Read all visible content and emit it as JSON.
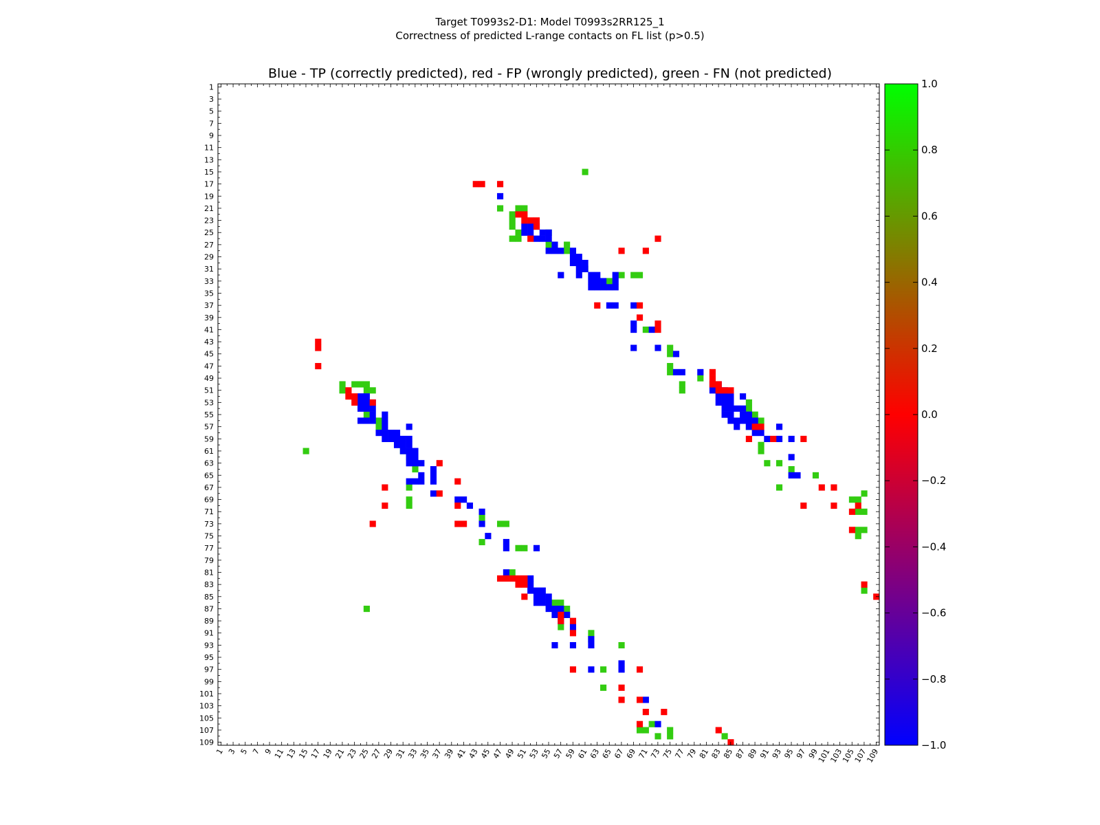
{
  "suptitle": {
    "line1": "Target T0993s2-D1: Model T0993s2RR125_1",
    "line2": "Correctness of predicted L-range contacts on FL list (p>0.5)"
  },
  "chart_data": {
    "type": "heatmap",
    "title": "Blue - TP (correctly predicted), red - FP (wrongly predicted), green - FN (not predicted)",
    "xlabel": "",
    "ylabel": "",
    "xlim": [
      1,
      109
    ],
    "ylim": [
      1,
      109
    ],
    "y_inverted": true,
    "grid": false,
    "tick_labels": [
      "1",
      "3",
      "5",
      "7",
      "9",
      "11",
      "13",
      "15",
      "17",
      "19",
      "21",
      "23",
      "25",
      "27",
      "29",
      "31",
      "33",
      "35",
      "37",
      "39",
      "41",
      "43",
      "45",
      "47",
      "49",
      "51",
      "53",
      "55",
      "57",
      "59",
      "61",
      "63",
      "65",
      "67",
      "69",
      "71",
      "73",
      "75",
      "77",
      "79",
      "81",
      "83",
      "85",
      "87",
      "89",
      "91",
      "93",
      "95",
      "97",
      "99",
      "101",
      "103",
      "105",
      "107",
      "109"
    ],
    "colorbar": {
      "min": -1.0,
      "max": 1.0,
      "tick_labels": [
        "1.0",
        "0.8",
        "0.6",
        "0.4",
        "0.2",
        "0.0",
        "−0.2",
        "−0.4",
        "−0.6",
        "−0.8",
        "−1.0"
      ],
      "colors": {
        "low": "#0000ff",
        "mid": "#ff0000",
        "high": "#00ff00"
      }
    },
    "category_colors": {
      "TP": "#0000ff",
      "FP": "#ff0000",
      "FN": "#33cc11"
    },
    "cells": {
      "TP": [
        [
          19,
          47
        ],
        [
          24,
          52
        ],
        [
          25,
          51
        ],
        [
          24,
          51
        ],
        [
          24,
          53
        ],
        [
          25,
          52
        ],
        [
          25,
          54
        ],
        [
          25,
          55
        ],
        [
          26,
          53
        ],
        [
          26,
          54
        ],
        [
          26,
          55
        ],
        [
          27,
          56
        ],
        [
          28,
          55
        ],
        [
          28,
          56
        ],
        [
          28,
          57
        ],
        [
          28,
          59
        ],
        [
          29,
          59
        ],
        [
          29,
          60
        ],
        [
          30,
          59
        ],
        [
          30,
          60
        ],
        [
          30,
          61
        ],
        [
          31,
          60
        ],
        [
          31,
          61
        ],
        [
          32,
          57
        ],
        [
          32,
          60
        ],
        [
          32,
          62
        ],
        [
          32,
          63
        ],
        [
          32,
          66
        ],
        [
          33,
          62
        ],
        [
          33,
          63
        ],
        [
          33,
          64
        ],
        [
          33,
          66
        ],
        [
          34,
          62
        ],
        [
          34,
          63
        ],
        [
          34,
          64
        ],
        [
          34,
          65
        ],
        [
          34,
          66
        ],
        [
          37,
          65
        ],
        [
          37,
          66
        ],
        [
          37,
          69
        ],
        [
          40,
          69
        ],
        [
          41,
          69
        ],
        [
          41,
          72
        ],
        [
          44,
          69
        ],
        [
          44,
          73
        ],
        [
          45,
          76
        ],
        [
          48,
          76
        ],
        [
          48,
          77
        ],
        [
          48,
          80
        ],
        [
          50,
          82
        ],
        [
          50,
          83
        ],
        [
          51,
          82
        ],
        [
          51,
          83
        ],
        [
          51,
          84
        ],
        [
          52,
          83
        ],
        [
          52,
          84
        ],
        [
          52,
          85
        ],
        [
          52,
          87
        ],
        [
          53,
          83
        ],
        [
          53,
          84
        ],
        [
          53,
          85
        ],
        [
          54,
          84
        ],
        [
          54,
          85
        ],
        [
          54,
          86
        ],
        [
          54,
          87
        ],
        [
          55,
          84
        ],
        [
          55,
          85
        ],
        [
          55,
          87
        ],
        [
          55,
          88
        ],
        [
          56,
          85
        ],
        [
          56,
          86
        ],
        [
          56,
          87
        ],
        [
          56,
          88
        ],
        [
          56,
          89
        ],
        [
          57,
          86
        ],
        [
          57,
          88
        ],
        [
          57,
          89
        ],
        [
          57,
          93
        ],
        [
          58,
          89
        ],
        [
          58,
          90
        ],
        [
          59,
          91
        ],
        [
          59,
          93
        ],
        [
          59,
          95
        ],
        [
          62,
          95
        ],
        [
          65,
          95
        ],
        [
          65,
          96
        ],
        [
          52,
          24
        ],
        [
          52,
          25
        ],
        [
          53,
          24
        ],
        [
          53,
          25
        ],
        [
          53,
          26
        ],
        [
          54,
          24
        ],
        [
          54,
          25
        ],
        [
          54,
          26
        ],
        [
          55,
          26
        ],
        [
          56,
          24
        ],
        [
          56,
          25
        ],
        [
          56,
          26
        ],
        [
          55,
          28
        ],
        [
          56,
          28
        ],
        [
          57,
          28
        ],
        [
          57,
          32
        ],
        [
          58,
          27
        ],
        [
          58,
          28
        ],
        [
          58,
          29
        ],
        [
          58,
          30
        ],
        [
          59,
          28
        ],
        [
          59,
          29
        ],
        [
          59,
          30
        ],
        [
          59,
          31
        ],
        [
          59,
          32
        ],
        [
          60,
          30
        ],
        [
          60,
          31
        ],
        [
          60,
          32
        ],
        [
          61,
          31
        ],
        [
          61,
          32
        ],
        [
          61,
          33
        ],
        [
          62,
          32
        ],
        [
          62,
          33
        ],
        [
          63,
          32
        ],
        [
          63,
          33
        ],
        [
          63,
          34
        ],
        [
          64,
          36
        ],
        [
          65,
          34
        ],
        [
          65,
          36
        ],
        [
          66,
          32
        ],
        [
          66,
          33
        ],
        [
          66,
          34
        ],
        [
          66,
          36
        ],
        [
          68,
          36
        ],
        [
          69,
          40
        ],
        [
          69,
          41
        ],
        [
          70,
          42
        ],
        [
          71,
          44
        ],
        [
          73,
          44
        ],
        [
          75,
          45
        ],
        [
          77,
          48
        ],
        [
          76,
          48
        ],
        [
          77,
          53
        ],
        [
          81,
          48
        ],
        [
          82,
          52
        ],
        [
          83,
          52
        ],
        [
          84,
          52
        ],
        [
          84,
          53
        ],
        [
          84,
          54
        ],
        [
          85,
          53
        ],
        [
          85,
          54
        ],
        [
          85,
          55
        ],
        [
          86,
          53
        ],
        [
          86,
          54
        ],
        [
          86,
          55
        ],
        [
          87,
          55
        ],
        [
          87,
          56
        ],
        [
          87,
          57
        ],
        [
          88,
          56
        ],
        [
          88,
          57
        ],
        [
          88,
          58
        ],
        [
          89,
          57
        ],
        [
          90,
          59
        ],
        [
          92,
          62
        ],
        [
          93,
          56
        ],
        [
          93,
          59
        ],
        [
          93,
          62
        ],
        [
          96,
          67
        ],
        [
          97,
          67
        ],
        [
          97,
          62
        ],
        [
          102,
          71
        ],
        [
          106,
          73
        ]
      ],
      "FP": [
        [
          17,
          43
        ],
        [
          17,
          44
        ],
        [
          17,
          47
        ],
        [
          22,
          50
        ],
        [
          22,
          51
        ],
        [
          23,
          51
        ],
        [
          23,
          52
        ],
        [
          23,
          53
        ],
        [
          24,
          53
        ],
        [
          26,
          52
        ],
        [
          26,
          73
        ],
        [
          28,
          67
        ],
        [
          28,
          71
        ],
        [
          37,
          63
        ],
        [
          37,
          70
        ],
        [
          39,
          70
        ],
        [
          40,
          73
        ],
        [
          41,
          73
        ],
        [
          43,
          17
        ],
        [
          44,
          17
        ],
        [
          47,
          17
        ],
        [
          48,
          82
        ],
        [
          49,
          82
        ],
        [
          50,
          82
        ],
        [
          50,
          83
        ],
        [
          51,
          83
        ],
        [
          51,
          84
        ],
        [
          51,
          22
        ],
        [
          51,
          85
        ],
        [
          52,
          22
        ],
        [
          52,
          23
        ],
        [
          53,
          23
        ],
        [
          53,
          26
        ],
        [
          57,
          89
        ],
        [
          57,
          90
        ],
        [
          59,
          88
        ],
        [
          59,
          92
        ],
        [
          59,
          97
        ],
        [
          63,
          37
        ],
        [
          66,
          40
        ],
        [
          67,
          28
        ],
        [
          67,
          100
        ],
        [
          67,
          102
        ],
        [
          68,
          37
        ],
        [
          70,
          28
        ],
        [
          70,
          40
        ],
        [
          70,
          97
        ],
        [
          70,
          102
        ],
        [
          70,
          106
        ],
        [
          71,
          105
        ],
        [
          73,
          26
        ],
        [
          73,
          40
        ],
        [
          73,
          41
        ],
        [
          74,
          105
        ],
        [
          82,
          47
        ],
        [
          82,
          48
        ],
        [
          82,
          49
        ],
        [
          82,
          50
        ],
        [
          82,
          51
        ],
        [
          83,
          50
        ],
        [
          83,
          51
        ],
        [
          83,
          107
        ],
        [
          85,
          51
        ],
        [
          85,
          109
        ],
        [
          88,
          57
        ],
        [
          89,
          57
        ],
        [
          89,
          59
        ],
        [
          91,
          59
        ],
        [
          97,
          59
        ],
        [
          97,
          70
        ],
        [
          100,
          67
        ],
        [
          102,
          67
        ],
        [
          102,
          70
        ],
        [
          104,
          71
        ],
        [
          104,
          74
        ],
        [
          106,
          70
        ],
        [
          107,
          83
        ],
        [
          109,
          85
        ]
      ],
      "FN": [
        [
          15,
          61
        ],
        [
          21,
          47
        ],
        [
          21,
          50
        ],
        [
          21,
          51
        ],
        [
          22,
          49
        ],
        [
          23,
          49
        ],
        [
          24,
          49
        ],
        [
          25,
          50
        ],
        [
          25,
          55
        ],
        [
          26,
          49
        ],
        [
          26,
          50
        ],
        [
          27,
          55
        ],
        [
          27,
          58
        ],
        [
          28,
          58
        ],
        [
          31,
          61
        ],
        [
          32,
          67
        ],
        [
          32,
          69
        ],
        [
          32,
          70
        ],
        [
          33,
          65
        ],
        [
          41,
          71
        ],
        [
          44,
          75
        ],
        [
          45,
          75
        ],
        [
          47,
          75
        ],
        [
          48,
          75
        ],
        [
          49,
          80
        ],
        [
          50,
          77
        ],
        [
          51,
          77
        ],
        [
          53,
          88
        ],
        [
          54,
          88
        ],
        [
          55,
          89
        ],
        [
          56,
          90
        ],
        [
          57,
          88
        ],
        [
          60,
          90
        ],
        [
          61,
          90
        ],
        [
          63,
          91
        ],
        [
          63,
          93
        ],
        [
          64,
          95
        ],
        [
          65,
          99
        ],
        [
          67,
          93
        ],
        [
          68,
          107
        ],
        [
          69,
          105
        ],
        [
          69,
          106
        ],
        [
          71,
          106
        ],
        [
          71,
          107
        ],
        [
          74,
          106
        ],
        [
          74,
          107
        ],
        [
          75,
          106
        ],
        [
          50,
          21
        ],
        [
          51,
          21
        ],
        [
          50,
          23
        ],
        [
          50,
          24
        ],
        [
          50,
          25
        ],
        [
          51,
          25
        ],
        [
          51,
          26
        ],
        [
          55,
          25
        ],
        [
          56,
          27
        ],
        [
          57,
          27
        ],
        [
          61,
          15
        ],
        [
          61,
          31
        ],
        [
          62,
          32
        ],
        [
          64,
          33
        ],
        [
          67,
          32
        ],
        [
          69,
          32
        ],
        [
          70,
          32
        ],
        [
          72,
          44
        ],
        [
          73,
          47
        ],
        [
          73,
          48
        ],
        [
          76,
          44
        ],
        [
          77,
          50
        ],
        [
          77,
          51
        ],
        [
          81,
          49
        ],
        [
          84,
          107
        ],
        [
          87,
          25
        ],
        [
          86,
          56
        ],
        [
          86,
          57
        ],
        [
          87,
          58
        ],
        [
          88,
          58
        ],
        [
          90,
          57
        ],
        [
          91,
          62
        ],
        [
          92,
          62
        ],
        [
          93,
          67
        ],
        [
          97,
          64
        ],
        [
          100,
          64
        ],
        [
          106,
          72
        ],
        [
          107,
          71
        ],
        [
          107,
          70
        ],
        [
          108,
          73
        ],
        [
          108,
          75
        ],
        [
          107,
          75
        ],
        [
          108,
          84
        ]
      ]
    }
  }
}
